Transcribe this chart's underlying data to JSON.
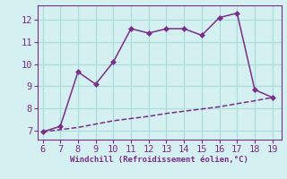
{
  "xlabel": "Windchill (Refroidissement éolien,°C)",
  "line1_x": [
    6,
    7,
    8,
    9,
    10,
    11,
    12,
    13,
    14,
    15,
    16,
    17,
    18,
    19
  ],
  "line1_y": [
    6.95,
    7.2,
    9.65,
    9.1,
    10.1,
    11.6,
    11.4,
    11.6,
    11.6,
    11.3,
    12.1,
    12.3,
    8.85,
    8.5
  ],
  "line2_x": [
    6,
    7,
    8,
    9,
    10,
    11,
    12,
    13,
    14,
    15,
    16,
    17,
    18,
    19
  ],
  "line2_y": [
    6.95,
    7.05,
    7.15,
    7.3,
    7.45,
    7.55,
    7.65,
    7.78,
    7.88,
    7.98,
    8.08,
    8.22,
    8.35,
    8.5
  ],
  "line_color": "#7b2d8b",
  "bg_color": "#d4f0f0",
  "grid_color": "#aadcdc",
  "spine_color": "#7b2d8b",
  "xlim": [
    5.7,
    19.5
  ],
  "ylim": [
    6.6,
    12.65
  ],
  "xticks": [
    6,
    7,
    8,
    9,
    10,
    11,
    12,
    13,
    14,
    15,
    16,
    17,
    18,
    19
  ],
  "yticks": [
    7,
    8,
    9,
    10,
    11,
    12
  ],
  "tick_color": "#7b2d8b",
  "label_fontsize": 6.5,
  "tick_fontsize": 7.5,
  "marker_size": 3.0,
  "linewidth": 1.1
}
